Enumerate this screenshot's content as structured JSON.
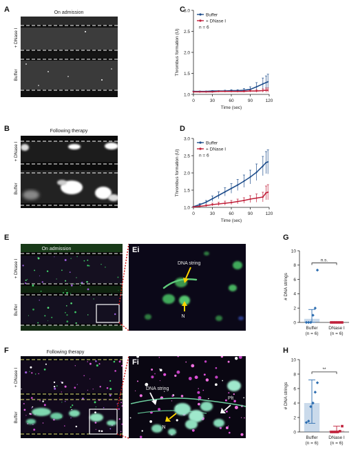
{
  "panels": {
    "A": {
      "label": "A",
      "caption": "On admission",
      "row_top": "+ DNase I",
      "row_bottom": "Buffer"
    },
    "B": {
      "label": "B",
      "caption": "Following therapy",
      "row_top": "+ DNase I",
      "row_bottom": "Buffer"
    },
    "E": {
      "label": "E",
      "caption": "On admission",
      "row_top": "+ DNase I",
      "row_bottom": "Buffer"
    },
    "Ei": {
      "label": "Ei",
      "annot_dna": "DNA string",
      "annot_n": "N"
    },
    "F": {
      "label": "F",
      "caption": "Following therapy",
      "row_top": "+ DNase I",
      "row_bottom": "Buffer"
    },
    "Fi": {
      "label": "Fi",
      "annot_dna": "DNA string",
      "annot_n": "N",
      "annot_plt": "Plt"
    }
  },
  "chart_data": [
    {
      "id": "C",
      "label": "C",
      "type": "line",
      "xlabel": "Time (sec)",
      "ylabel": "Thrombus formation (U)",
      "xlim": [
        0,
        120
      ],
      "ylim": [
        1.0,
        3.0
      ],
      "xticks": [
        "0",
        "30",
        "60",
        "90",
        "120"
      ],
      "yticks": [
        "1.0",
        "1.5",
        "2.0",
        "2.5",
        "3.0"
      ],
      "legend": [
        "Buffer",
        "+ DNase I"
      ],
      "note": "n = 6",
      "x": [
        0,
        10,
        20,
        30,
        40,
        50,
        60,
        70,
        80,
        90,
        100,
        110,
        115,
        118
      ],
      "series": [
        {
          "name": "Buffer",
          "color": "#1f4e8c",
          "values": [
            1.07,
            1.07,
            1.07,
            1.08,
            1.08,
            1.08,
            1.09,
            1.09,
            1.1,
            1.12,
            1.18,
            1.25,
            1.28,
            1.3
          ],
          "err": [
            0.01,
            0.01,
            0.01,
            0.01,
            0.01,
            0.02,
            0.02,
            0.02,
            0.04,
            0.06,
            0.1,
            0.14,
            0.16,
            0.18
          ]
        },
        {
          "name": "+ DNase I",
          "color": "#c0203a",
          "values": [
            1.06,
            1.06,
            1.06,
            1.06,
            1.07,
            1.07,
            1.07,
            1.07,
            1.07,
            1.08,
            1.08,
            1.09,
            1.1,
            1.1
          ],
          "err": [
            0.01,
            0.01,
            0.01,
            0.01,
            0.01,
            0.01,
            0.01,
            0.01,
            0.02,
            0.02,
            0.03,
            0.04,
            0.05,
            0.05
          ]
        }
      ]
    },
    {
      "id": "D",
      "label": "D",
      "type": "line",
      "xlabel": "Time (sec)",
      "ylabel": "Thrombus formation (U)",
      "xlim": [
        0,
        120
      ],
      "ylim": [
        1.0,
        3.0
      ],
      "xticks": [
        "0",
        "30",
        "60",
        "90",
        "120"
      ],
      "yticks": [
        "1.0",
        "1.5",
        "2.0",
        "2.5",
        "3.0"
      ],
      "legend": [
        "Buffer",
        "+ DNase I"
      ],
      "note": "n = 6",
      "x": [
        0,
        10,
        20,
        30,
        40,
        50,
        60,
        70,
        80,
        90,
        100,
        110,
        115,
        118
      ],
      "series": [
        {
          "name": "Buffer",
          "color": "#1f4e8c",
          "values": [
            1.02,
            1.08,
            1.15,
            1.25,
            1.35,
            1.45,
            1.55,
            1.65,
            1.76,
            1.88,
            2.02,
            2.2,
            2.3,
            2.32
          ],
          "err": [
            0.01,
            0.03,
            0.05,
            0.08,
            0.1,
            0.12,
            0.14,
            0.16,
            0.18,
            0.2,
            0.24,
            0.28,
            0.32,
            0.35
          ]
        },
        {
          "name": "+ DNase I",
          "color": "#c0203a",
          "values": [
            1.01,
            1.03,
            1.05,
            1.08,
            1.1,
            1.12,
            1.14,
            1.17,
            1.2,
            1.24,
            1.27,
            1.3,
            1.42,
            1.44
          ],
          "err": [
            0.01,
            0.02,
            0.03,
            0.04,
            0.05,
            0.06,
            0.06,
            0.07,
            0.08,
            0.1,
            0.12,
            0.14,
            0.2,
            0.22
          ]
        }
      ]
    },
    {
      "id": "G",
      "label": "G",
      "type": "bar",
      "ylabel": "# DNA strings",
      "ylim": [
        0,
        10
      ],
      "yticks": [
        "0",
        "2",
        "4",
        "6",
        "8",
        "10"
      ],
      "categories": [
        "Buffer",
        "DNase I"
      ],
      "category_sub": [
        "(n = 6)",
        "(n = 6)"
      ],
      "values": [
        0.5,
        0.0
      ],
      "err_low": [
        0.0,
        0.0
      ],
      "err_high": [
        1.8,
        0.0
      ],
      "points": [
        [
          0,
          0,
          0,
          1,
          2,
          7.3
        ],
        [
          0,
          0,
          0,
          0,
          0,
          0
        ]
      ],
      "colors": [
        "#2c6db0",
        "#c0203a"
      ],
      "significance": "n.s."
    },
    {
      "id": "H",
      "label": "H",
      "type": "bar",
      "ylabel": "# DNA strings",
      "ylim": [
        0,
        10
      ],
      "yticks": [
        "0",
        "2",
        "4",
        "6",
        "8",
        "10"
      ],
      "categories": [
        "Buffer",
        "DNase I"
      ],
      "category_sub": [
        "(n = 6)",
        "(n = 6)"
      ],
      "values": [
        4.0,
        0.2
      ],
      "err_low": [
        1.2,
        0.0
      ],
      "err_high": [
        7.2,
        0.8
      ],
      "points": [
        [
          1.3,
          1.5,
          3.5,
          4.0,
          5.5,
          6.8
        ],
        [
          0,
          0,
          0,
          0,
          0.1,
          0.8
        ]
      ],
      "colors": [
        "#2c6db0",
        "#c0203a"
      ],
      "significance": "**"
    }
  ]
}
